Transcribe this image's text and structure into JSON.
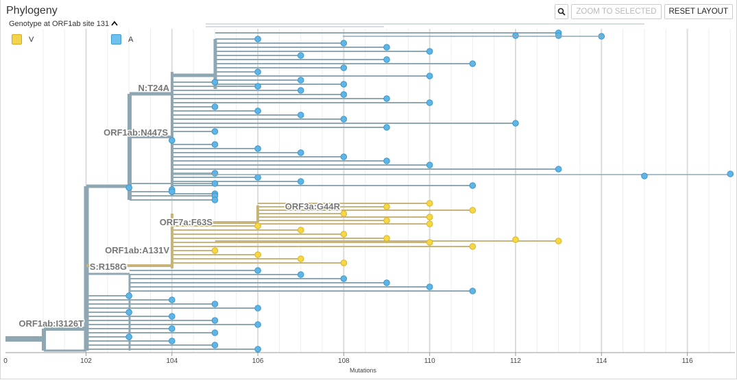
{
  "panel": {
    "title": "Phylogeny"
  },
  "toolbar": {
    "zoom_selected_label": "ZOOM TO SELECTED",
    "reset_label": "RESET LAYOUT",
    "zoom_icon": "magnifier-icon"
  },
  "color_by": {
    "label": "Genotype at ORF1ab site 131",
    "toggle_icon": "chevron-up-icon"
  },
  "legend": [
    {
      "label": "V",
      "color": "#f2d44c",
      "border": "#d2a91f"
    },
    {
      "label": "A",
      "color": "#6ec0ee",
      "border": "#3f99cc"
    }
  ],
  "colors": {
    "branch_default": "#8fa7b3",
    "branch_yellow": "#c8b47a",
    "tip_blue": "#5fb5e6",
    "tip_yellow": "#f6d746"
  },
  "axis": {
    "title": "Mutations",
    "ticks": [
      "102",
      "104",
      "106",
      "108",
      "110",
      "112",
      "114",
      "116"
    ],
    "partial_tick": "0"
  },
  "branch_labels": [
    "N:T24A",
    "ORF1ab:N447S",
    "ORF3a:G44R",
    "ORF7a:F63S",
    "ORF1ab:A131V",
    "S:R158G",
    "ORF1ab:I3126T"
  ]
}
